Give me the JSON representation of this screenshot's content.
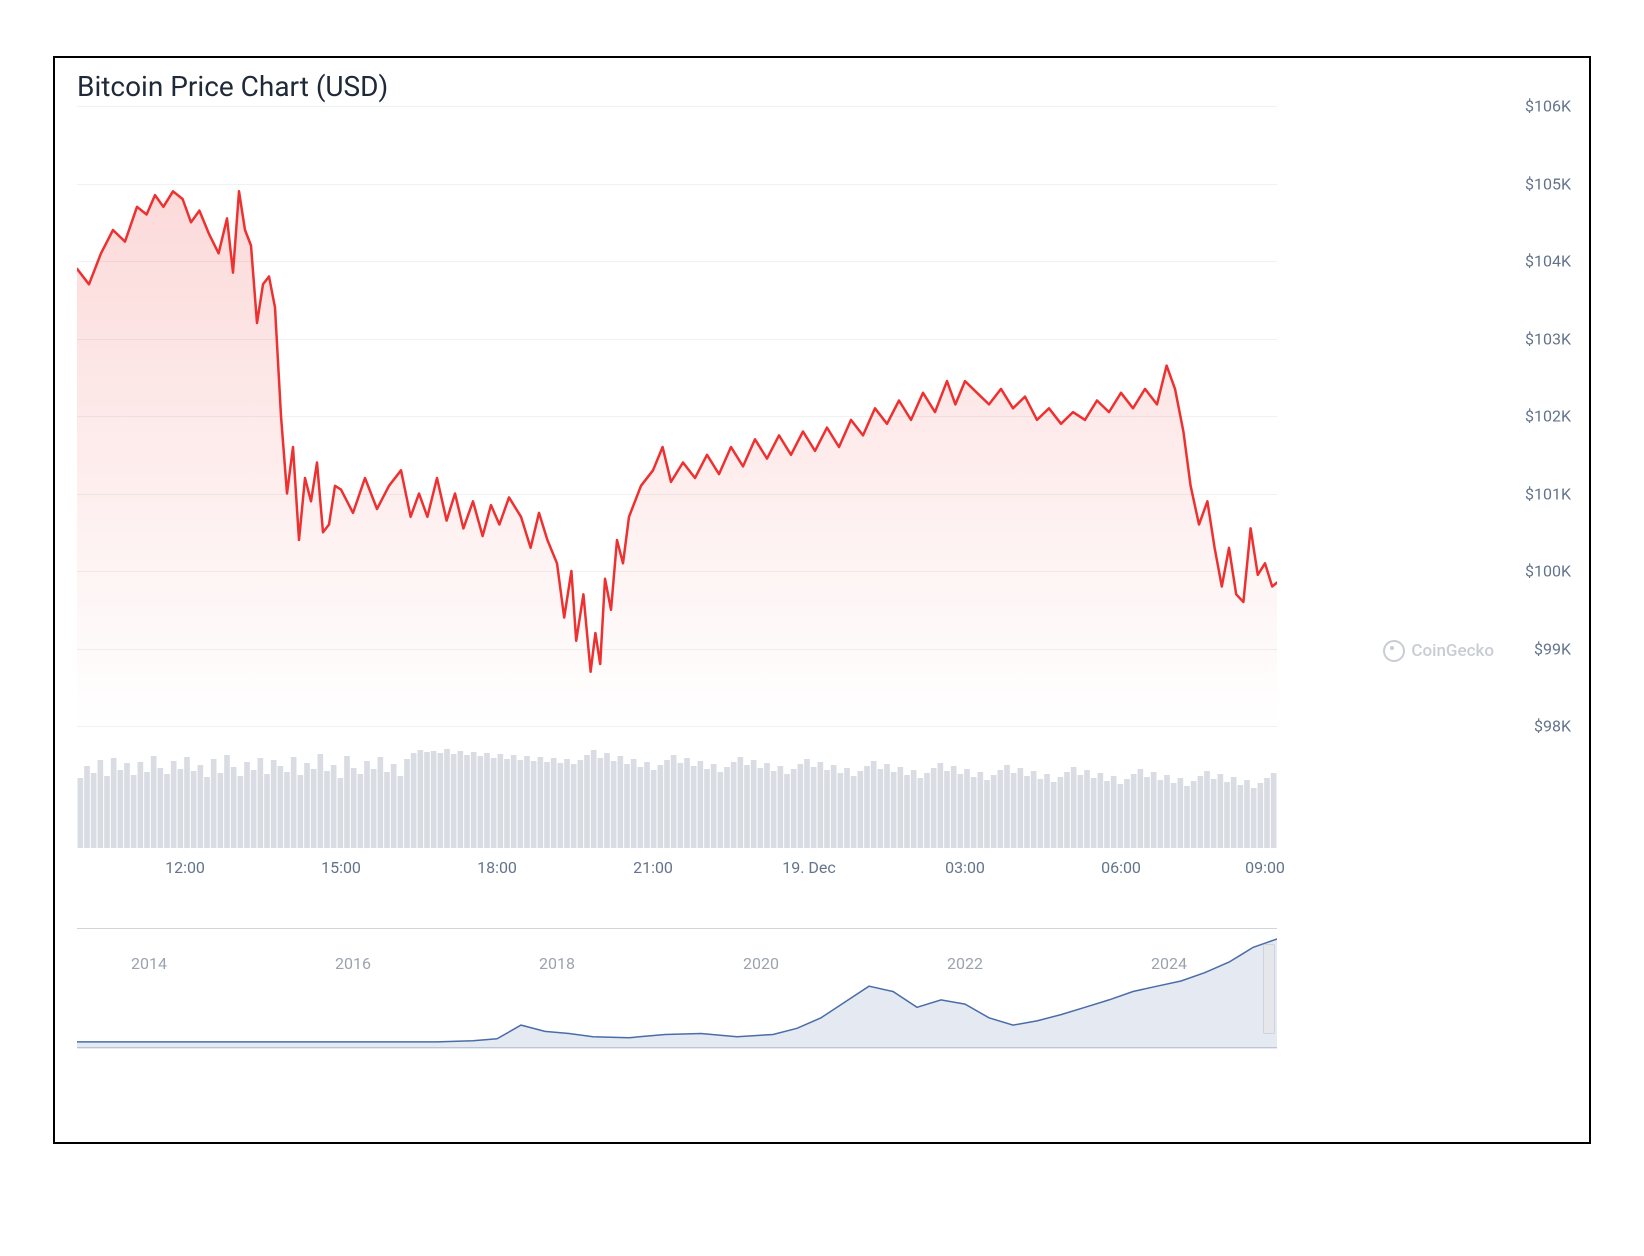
{
  "title": "Bitcoin Price Chart (USD)",
  "watermark": "CoinGecko",
  "price_chart": {
    "type": "area",
    "line_color": "#ef3030",
    "line_width": 2.5,
    "fill_gradient_top": "rgba(239,48,48,0.18)",
    "fill_gradient_bottom": "rgba(239,48,48,0.00)",
    "background_color": "#ffffff",
    "grid_color": "#e5e7eb",
    "ylim": [
      98000,
      106000
    ],
    "ytick_step": 1000,
    "ytick_labels": [
      "$98K",
      "$99K",
      "$100K",
      "$101K",
      "$102K",
      "$103K",
      "$104K",
      "$105K",
      "$106K"
    ],
    "y_label_color": "#64748b",
    "y_label_fontsize": 16,
    "x_label_color": "#64748b",
    "x_label_fontsize": 16,
    "x_ticks": [
      {
        "pos": 0.09,
        "label": "12:00"
      },
      {
        "pos": 0.22,
        "label": "15:00"
      },
      {
        "pos": 0.35,
        "label": "18:00"
      },
      {
        "pos": 0.48,
        "label": "21:00"
      },
      {
        "pos": 0.61,
        "label": "19. Dec"
      },
      {
        "pos": 0.74,
        "label": "03:00"
      },
      {
        "pos": 0.87,
        "label": "06:00"
      },
      {
        "pos": 0.99,
        "label": "09:00"
      }
    ],
    "series": [
      [
        0.0,
        103900
      ],
      [
        0.01,
        103700
      ],
      [
        0.02,
        104100
      ],
      [
        0.03,
        104400
      ],
      [
        0.04,
        104250
      ],
      [
        0.05,
        104700
      ],
      [
        0.058,
        104600
      ],
      [
        0.065,
        104850
      ],
      [
        0.072,
        104700
      ],
      [
        0.08,
        104900
      ],
      [
        0.088,
        104800
      ],
      [
        0.095,
        104500
      ],
      [
        0.102,
        104650
      ],
      [
        0.11,
        104350
      ],
      [
        0.118,
        104100
      ],
      [
        0.125,
        104550
      ],
      [
        0.13,
        103850
      ],
      [
        0.135,
        104900
      ],
      [
        0.14,
        104400
      ],
      [
        0.145,
        104200
      ],
      [
        0.15,
        103200
      ],
      [
        0.155,
        103700
      ],
      [
        0.16,
        103800
      ],
      [
        0.165,
        103400
      ],
      [
        0.17,
        102000
      ],
      [
        0.175,
        101000
      ],
      [
        0.18,
        101600
      ],
      [
        0.185,
        100400
      ],
      [
        0.19,
        101200
      ],
      [
        0.195,
        100900
      ],
      [
        0.2,
        101400
      ],
      [
        0.205,
        100500
      ],
      [
        0.21,
        100600
      ],
      [
        0.215,
        101100
      ],
      [
        0.22,
        101050
      ],
      [
        0.23,
        100750
      ],
      [
        0.24,
        101200
      ],
      [
        0.25,
        100800
      ],
      [
        0.26,
        101100
      ],
      [
        0.27,
        101300
      ],
      [
        0.278,
        100700
      ],
      [
        0.285,
        101000
      ],
      [
        0.292,
        100700
      ],
      [
        0.3,
        101200
      ],
      [
        0.308,
        100650
      ],
      [
        0.315,
        101000
      ],
      [
        0.322,
        100550
      ],
      [
        0.33,
        100900
      ],
      [
        0.338,
        100450
      ],
      [
        0.345,
        100850
      ],
      [
        0.352,
        100600
      ],
      [
        0.36,
        100950
      ],
      [
        0.37,
        100700
      ],
      [
        0.378,
        100300
      ],
      [
        0.385,
        100750
      ],
      [
        0.392,
        100400
      ],
      [
        0.4,
        100100
      ],
      [
        0.406,
        99400
      ],
      [
        0.412,
        100000
      ],
      [
        0.416,
        99100
      ],
      [
        0.422,
        99700
      ],
      [
        0.428,
        98700
      ],
      [
        0.432,
        99200
      ],
      [
        0.436,
        98800
      ],
      [
        0.44,
        99900
      ],
      [
        0.445,
        99500
      ],
      [
        0.45,
        100400
      ],
      [
        0.455,
        100100
      ],
      [
        0.46,
        100700
      ],
      [
        0.47,
        101100
      ],
      [
        0.48,
        101300
      ],
      [
        0.488,
        101600
      ],
      [
        0.495,
        101150
      ],
      [
        0.505,
        101400
      ],
      [
        0.515,
        101200
      ],
      [
        0.525,
        101500
      ],
      [
        0.535,
        101250
      ],
      [
        0.545,
        101600
      ],
      [
        0.555,
        101350
      ],
      [
        0.565,
        101700
      ],
      [
        0.575,
        101450
      ],
      [
        0.585,
        101750
      ],
      [
        0.595,
        101500
      ],
      [
        0.605,
        101800
      ],
      [
        0.615,
        101550
      ],
      [
        0.625,
        101850
      ],
      [
        0.635,
        101600
      ],
      [
        0.645,
        101950
      ],
      [
        0.655,
        101750
      ],
      [
        0.665,
        102100
      ],
      [
        0.675,
        101900
      ],
      [
        0.685,
        102200
      ],
      [
        0.695,
        101950
      ],
      [
        0.705,
        102300
      ],
      [
        0.715,
        102050
      ],
      [
        0.725,
        102450
      ],
      [
        0.732,
        102150
      ],
      [
        0.74,
        102450
      ],
      [
        0.75,
        102300
      ],
      [
        0.76,
        102150
      ],
      [
        0.77,
        102350
      ],
      [
        0.78,
        102100
      ],
      [
        0.79,
        102250
      ],
      [
        0.8,
        101950
      ],
      [
        0.81,
        102100
      ],
      [
        0.82,
        101900
      ],
      [
        0.83,
        102050
      ],
      [
        0.84,
        101950
      ],
      [
        0.85,
        102200
      ],
      [
        0.86,
        102050
      ],
      [
        0.87,
        102300
      ],
      [
        0.88,
        102100
      ],
      [
        0.89,
        102350
      ],
      [
        0.9,
        102150
      ],
      [
        0.908,
        102650
      ],
      [
        0.915,
        102350
      ],
      [
        0.922,
        101800
      ],
      [
        0.928,
        101100
      ],
      [
        0.935,
        100600
      ],
      [
        0.942,
        100900
      ],
      [
        0.948,
        100300
      ],
      [
        0.954,
        99800
      ],
      [
        0.96,
        100300
      ],
      [
        0.966,
        99700
      ],
      [
        0.972,
        99600
      ],
      [
        0.978,
        100550
      ],
      [
        0.984,
        99950
      ],
      [
        0.99,
        100100
      ],
      [
        0.996,
        99800
      ],
      [
        1.0,
        99850
      ]
    ]
  },
  "volume_chart": {
    "type": "bar",
    "bar_color": "#d9dde3",
    "background_color": "#ffffff",
    "n_bars": 180,
    "value_range": [
      0.55,
      1.0
    ],
    "values": [
      0.7,
      0.82,
      0.75,
      0.88,
      0.72,
      0.9,
      0.78,
      0.85,
      0.73,
      0.86,
      0.76,
      0.92,
      0.8,
      0.74,
      0.87,
      0.79,
      0.91,
      0.77,
      0.83,
      0.71,
      0.89,
      0.75,
      0.93,
      0.81,
      0.72,
      0.86,
      0.78,
      0.9,
      0.74,
      0.88,
      0.82,
      0.76,
      0.91,
      0.73,
      0.85,
      0.79,
      0.94,
      0.77,
      0.83,
      0.7,
      0.92,
      0.8,
      0.74,
      0.87,
      0.79,
      0.91,
      0.76,
      0.84,
      0.72,
      0.89,
      0.95,
      0.98,
      0.96,
      0.97,
      0.95,
      0.99,
      0.94,
      0.97,
      0.93,
      0.96,
      0.92,
      0.95,
      0.9,
      0.94,
      0.89,
      0.93,
      0.88,
      0.92,
      0.87,
      0.91,
      0.86,
      0.9,
      0.85,
      0.89,
      0.84,
      0.88,
      0.93,
      0.98,
      0.9,
      0.95,
      0.87,
      0.92,
      0.84,
      0.89,
      0.81,
      0.86,
      0.78,
      0.83,
      0.88,
      0.93,
      0.85,
      0.9,
      0.82,
      0.87,
      0.79,
      0.84,
      0.76,
      0.81,
      0.86,
      0.91,
      0.83,
      0.88,
      0.8,
      0.85,
      0.77,
      0.82,
      0.74,
      0.79,
      0.84,
      0.89,
      0.81,
      0.86,
      0.78,
      0.83,
      0.75,
      0.8,
      0.72,
      0.77,
      0.82,
      0.87,
      0.79,
      0.84,
      0.76,
      0.81,
      0.73,
      0.78,
      0.7,
      0.75,
      0.8,
      0.85,
      0.77,
      0.82,
      0.74,
      0.79,
      0.71,
      0.76,
      0.68,
      0.73,
      0.78,
      0.83,
      0.75,
      0.8,
      0.72,
      0.77,
      0.69,
      0.74,
      0.66,
      0.71,
      0.76,
      0.81,
      0.73,
      0.78,
      0.7,
      0.75,
      0.67,
      0.72,
      0.64,
      0.69,
      0.74,
      0.79,
      0.71,
      0.76,
      0.68,
      0.73,
      0.65,
      0.7,
      0.62,
      0.67,
      0.72,
      0.77,
      0.69,
      0.74,
      0.66,
      0.71,
      0.63,
      0.68,
      0.6,
      0.65,
      0.7,
      0.75
    ]
  },
  "overview_chart": {
    "type": "line",
    "line_color": "#4a6da8",
    "line_width": 1.5,
    "fill_color": "rgba(74,109,168,0.15)",
    "handle_color": "#e5e7eb",
    "label_color": "#9ca3af",
    "label_fontsize": 16,
    "x_ticks": [
      {
        "pos": 0.06,
        "label": "2014"
      },
      {
        "pos": 0.23,
        "label": "2016"
      },
      {
        "pos": 0.4,
        "label": "2018"
      },
      {
        "pos": 0.57,
        "label": "2020"
      },
      {
        "pos": 0.74,
        "label": "2022"
      },
      {
        "pos": 0.91,
        "label": "2024"
      }
    ],
    "series": [
      [
        0.0,
        0.02
      ],
      [
        0.05,
        0.02
      ],
      [
        0.1,
        0.02
      ],
      [
        0.15,
        0.02
      ],
      [
        0.2,
        0.02
      ],
      [
        0.25,
        0.02
      ],
      [
        0.3,
        0.02
      ],
      [
        0.33,
        0.03
      ],
      [
        0.35,
        0.05
      ],
      [
        0.37,
        0.18
      ],
      [
        0.39,
        0.12
      ],
      [
        0.41,
        0.1
      ],
      [
        0.43,
        0.07
      ],
      [
        0.46,
        0.06
      ],
      [
        0.49,
        0.09
      ],
      [
        0.52,
        0.1
      ],
      [
        0.55,
        0.07
      ],
      [
        0.58,
        0.09
      ],
      [
        0.6,
        0.15
      ],
      [
        0.62,
        0.25
      ],
      [
        0.64,
        0.4
      ],
      [
        0.66,
        0.55
      ],
      [
        0.68,
        0.5
      ],
      [
        0.7,
        0.35
      ],
      [
        0.72,
        0.42
      ],
      [
        0.74,
        0.38
      ],
      [
        0.76,
        0.25
      ],
      [
        0.78,
        0.18
      ],
      [
        0.8,
        0.22
      ],
      [
        0.82,
        0.28
      ],
      [
        0.84,
        0.35
      ],
      [
        0.86,
        0.42
      ],
      [
        0.88,
        0.5
      ],
      [
        0.9,
        0.55
      ],
      [
        0.92,
        0.6
      ],
      [
        0.94,
        0.68
      ],
      [
        0.96,
        0.78
      ],
      [
        0.97,
        0.85
      ],
      [
        0.98,
        0.92
      ],
      [
        0.99,
        0.96
      ],
      [
        1.0,
        1.0
      ]
    ]
  }
}
